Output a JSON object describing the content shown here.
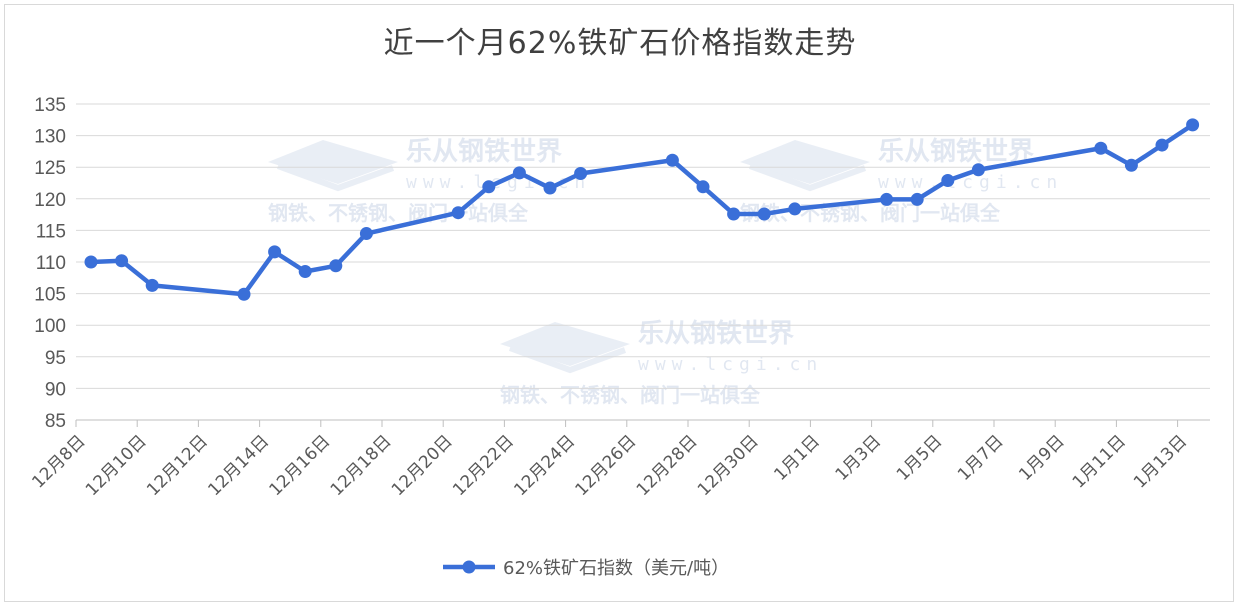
{
  "chart_data": {
    "type": "line",
    "title": "近一个月62%铁矿石价格指数走势",
    "xlabel": "",
    "ylabel": "",
    "ylim": [
      85,
      135
    ],
    "yticks": [
      85,
      90,
      95,
      100,
      105,
      110,
      115,
      120,
      125,
      130,
      135
    ],
    "xticks": [
      "12月8日",
      "12月10日",
      "12月12日",
      "12月14日",
      "12月16日",
      "12月18日",
      "12月20日",
      "12月22日",
      "12月24日",
      "12月26日",
      "12月28日",
      "12月30日",
      "1月1日",
      "1月3日",
      "1月5日",
      "1月7日",
      "1月9日",
      "1月11日",
      "1月13日"
    ],
    "grid": true,
    "legend_position": "bottom",
    "series": [
      {
        "name": "62%铁矿石指数（美元/吨）",
        "color": "#3a6fd8",
        "points": [
          {
            "day": 0,
            "y": 110.0
          },
          {
            "day": 1,
            "y": 110.2
          },
          {
            "day": 2,
            "y": 106.3
          },
          {
            "day": 5,
            "y": 104.9
          },
          {
            "day": 6,
            "y": 111.6
          },
          {
            "day": 7,
            "y": 108.5
          },
          {
            "day": 8,
            "y": 109.4
          },
          {
            "day": 9,
            "y": 114.5
          },
          {
            "day": 12,
            "y": 117.8
          },
          {
            "day": 13,
            "y": 121.9
          },
          {
            "day": 14,
            "y": 124.1
          },
          {
            "day": 15,
            "y": 121.7
          },
          {
            "day": 16,
            "y": 124.0
          },
          {
            "day": 19,
            "y": 126.1
          },
          {
            "day": 20,
            "y": 121.9
          },
          {
            "day": 21,
            "y": 117.6
          },
          {
            "day": 22,
            "y": 117.6
          },
          {
            "day": 23,
            "y": 118.4
          },
          {
            "day": 26,
            "y": 119.9
          },
          {
            "day": 27,
            "y": 119.9
          },
          {
            "day": 28,
            "y": 122.9
          },
          {
            "day": 29,
            "y": 124.6
          },
          {
            "day": 33,
            "y": 128.0
          },
          {
            "day": 34,
            "y": 125.3
          },
          {
            "day": 35,
            "y": 128.5
          },
          {
            "day": 36,
            "y": 131.7
          }
        ]
      }
    ]
  },
  "watermark": {
    "brand": "乐从钢铁世界",
    "url": "www.lcgi.cn",
    "slogan": "钢铁、不锈钢、阀门一站俱全"
  }
}
